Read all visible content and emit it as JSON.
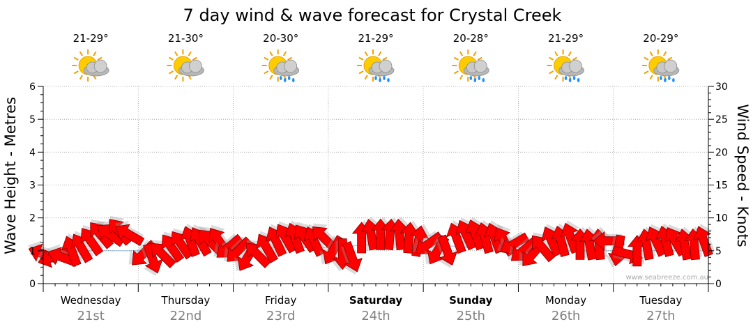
{
  "chart_data": {
    "type": "line",
    "title": "7 day wind & wave forecast for Crystal Creek",
    "ylabel": "Wave Height - Metres",
    "y2label": "Wind Speed - Knots",
    "ylim": [
      0,
      6
    ],
    "y2lim": [
      0,
      30
    ],
    "yticks": [
      "0",
      "1",
      "2",
      "3",
      "4",
      "5",
      "6"
    ],
    "y2ticks": [
      "0",
      "5",
      "10",
      "15",
      "20",
      "25",
      "30"
    ],
    "watermark": "www.seabreeze.com.au",
    "colors": {
      "arrow": "#ff0000",
      "arrow_stroke": "#8b0000",
      "grid": "#999999",
      "axis": "#000000",
      "date": "#808080"
    },
    "days": [
      {
        "name": "Wednesday",
        "date": "21st",
        "temp": "21-29°",
        "weather_icon": "sun-cloud-icon",
        "weekend": false
      },
      {
        "name": "Thursday",
        "date": "22nd",
        "temp": "21-30°",
        "weather_icon": "sun-cloud-icon",
        "weekend": false
      },
      {
        "name": "Friday",
        "date": "23rd",
        "temp": "20-30°",
        "weather_icon": "sun-cloud-rain-icon",
        "weekend": false
      },
      {
        "name": "Saturday",
        "date": "24th",
        "temp": "21-29°",
        "weather_icon": "sun-cloud-rain-icon",
        "weekend": true
      },
      {
        "name": "Sunday",
        "date": "25th",
        "temp": "20-28°",
        "weather_icon": "sun-cloud-rain-icon",
        "weekend": true
      },
      {
        "name": "Monday",
        "date": "26th",
        "temp": "21-29°",
        "weather_icon": "sun-cloud-rain-icon",
        "weekend": false
      },
      {
        "name": "Tuesday",
        "date": "27th",
        "temp": "20-29°",
        "weather_icon": "sun-cloud-rain-icon",
        "weekend": false
      }
    ],
    "series": [
      {
        "name": "Wind Speed (knots)",
        "axis": "right",
        "direction_unit": "degrees",
        "points": [
          [
            0.0,
            4.5,
            200
          ],
          [
            0.1,
            4.0,
            160
          ],
          [
            0.2,
            4.0,
            200
          ],
          [
            0.3,
            5.0,
            250
          ],
          [
            0.4,
            5.5,
            240
          ],
          [
            0.5,
            6.5,
            235
          ],
          [
            0.6,
            7.5,
            230
          ],
          [
            0.7,
            7.5,
            215
          ],
          [
            0.8,
            8.0,
            230
          ],
          [
            0.9,
            7.5,
            210
          ],
          [
            1.05,
            4.5,
            135
          ],
          [
            1.15,
            3.8,
            70
          ],
          [
            1.25,
            4.5,
            225
          ],
          [
            1.35,
            5.5,
            235
          ],
          [
            1.45,
            6.0,
            235
          ],
          [
            1.55,
            6.5,
            250
          ],
          [
            1.65,
            6.5,
            240
          ],
          [
            1.75,
            6.5,
            225
          ],
          [
            1.85,
            6.5,
            235
          ],
          [
            1.95,
            5.5,
            140
          ],
          [
            2.05,
            5.0,
            135
          ],
          [
            2.15,
            4.0,
            120
          ],
          [
            2.25,
            4.5,
            225
          ],
          [
            2.35,
            5.5,
            240
          ],
          [
            2.45,
            6.5,
            245
          ],
          [
            2.55,
            7.0,
            240
          ],
          [
            2.65,
            7.0,
            250
          ],
          [
            2.75,
            7.0,
            235
          ],
          [
            2.85,
            6.5,
            245
          ],
          [
            2.95,
            7.0,
            225
          ],
          [
            3.05,
            5.0,
            120
          ],
          [
            3.15,
            4.5,
            90
          ],
          [
            3.25,
            4.0,
            70
          ],
          [
            3.35,
            7.0,
            270
          ],
          [
            3.45,
            7.5,
            260
          ],
          [
            3.55,
            7.5,
            270
          ],
          [
            3.65,
            7.5,
            275
          ],
          [
            3.75,
            7.5,
            265
          ],
          [
            3.85,
            7.0,
            275
          ],
          [
            3.95,
            6.5,
            280
          ],
          [
            4.05,
            6.0,
            145
          ],
          [
            4.15,
            5.0,
            120
          ],
          [
            4.25,
            5.0,
            70
          ],
          [
            4.35,
            7.0,
            250
          ],
          [
            4.45,
            7.5,
            245
          ],
          [
            4.55,
            7.5,
            250
          ],
          [
            4.65,
            7.0,
            255
          ],
          [
            4.75,
            7.0,
            250
          ],
          [
            4.85,
            6.5,
            240
          ],
          [
            4.95,
            6.0,
            150
          ],
          [
            5.05,
            5.0,
            140
          ],
          [
            5.15,
            4.5,
            130
          ],
          [
            5.25,
            5.5,
            230
          ],
          [
            5.35,
            6.5,
            245
          ],
          [
            5.45,
            6.5,
            255
          ],
          [
            5.55,
            7.0,
            250
          ],
          [
            5.65,
            6.0,
            270
          ],
          [
            5.75,
            6.0,
            260
          ],
          [
            5.85,
            6.0,
            265
          ],
          [
            5.95,
            6.5,
            180
          ],
          [
            6.05,
            5.0,
            100
          ],
          [
            6.15,
            4.5,
            15
          ],
          [
            6.25,
            5.0,
            270
          ],
          [
            6.35,
            6.0,
            260
          ],
          [
            6.45,
            6.5,
            245
          ],
          [
            6.55,
            6.5,
            255
          ],
          [
            6.65,
            6.5,
            240
          ],
          [
            6.75,
            6.0,
            260
          ],
          [
            6.85,
            6.0,
            265
          ],
          [
            6.95,
            6.5,
            250
          ]
        ]
      },
      {
        "name": "Wave Height (m)",
        "axis": "left",
        "points": [
          [
            0.0,
            0.9
          ],
          [
            0.5,
            1.0
          ],
          [
            1.0,
            1.0
          ],
          [
            1.5,
            1.1
          ],
          [
            2.0,
            1.1
          ],
          [
            2.5,
            1.1
          ],
          [
            3.0,
            1.1
          ],
          [
            3.5,
            1.2
          ],
          [
            4.0,
            1.2
          ],
          [
            4.5,
            1.1
          ],
          [
            5.0,
            1.1
          ],
          [
            5.5,
            1.0
          ],
          [
            6.0,
            1.0
          ],
          [
            6.5,
            1.0
          ],
          [
            7.0,
            1.0
          ]
        ]
      }
    ]
  }
}
